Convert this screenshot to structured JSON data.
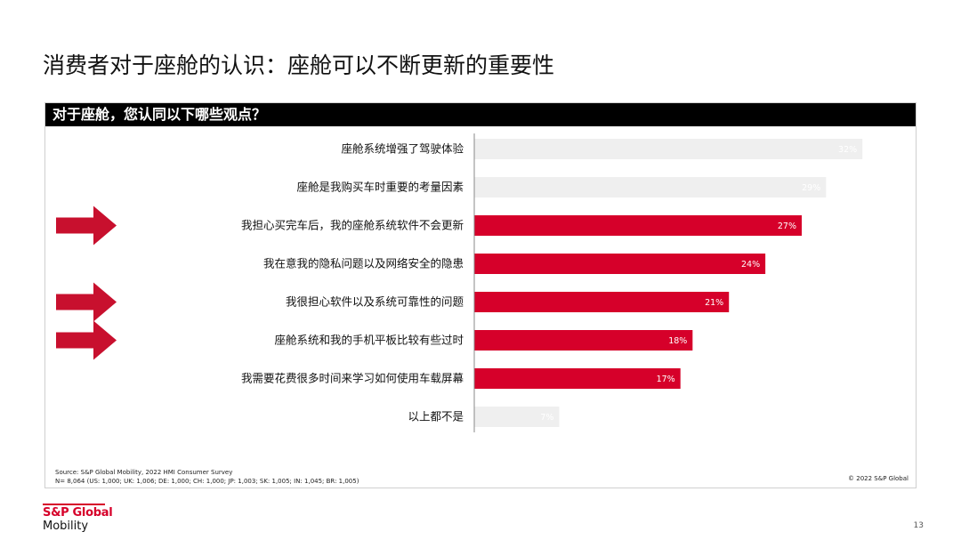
{
  "page": {
    "title": "消费者对于座舱的认识：座舱可以不断更新的重要性",
    "page_number": "13"
  },
  "panel": {
    "header": "对于座舱，您认同以下哪些观点？",
    "source_line1": "Source: S&P Global Mobility, 2022 HMI Consumer Survey",
    "source_line2": "N= 8,064 (US: 1,000; UK: 1,006; DE: 1,000; CH: 1,000; JP: 1,003; SK: 1,005; IN: 1,045; BR: 1,005)",
    "copyright": "© 2022 S&P Global"
  },
  "logo": {
    "line1": "S&P Global",
    "line2": "Mobility"
  },
  "colors": {
    "highlight": "#d6002a",
    "muted_bar": "#efefef",
    "muted_label": "#ffffff",
    "arrow": "#c8102e"
  },
  "chart_data": {
    "type": "bar",
    "orientation": "horizontal",
    "categories": [
      "座舱系统增强了驾驶体验",
      "座舱是我购买车时重要的考量因素",
      "我担心买完车后，我的座舱系统软件不会更新",
      "我在意我的隐私问题以及网络安全的隐患",
      "我很担心软件以及系统可靠性的问题",
      "座舱系统和我的手机平板比较有些过时",
      "我需要花费很多时间来学习如何使用车载屏幕",
      "以上都不是"
    ],
    "values": [
      32,
      29,
      27,
      24,
      21,
      18,
      17,
      7
    ],
    "labels": [
      "32%",
      "29%",
      "27%",
      "24%",
      "21%",
      "18%",
      "17%",
      "7%"
    ],
    "highlighted": [
      false,
      false,
      true,
      true,
      true,
      true,
      true,
      false
    ],
    "arrows": [
      false,
      false,
      true,
      false,
      true,
      true,
      false,
      false
    ],
    "xlim": [
      0,
      32
    ],
    "grid": false
  }
}
